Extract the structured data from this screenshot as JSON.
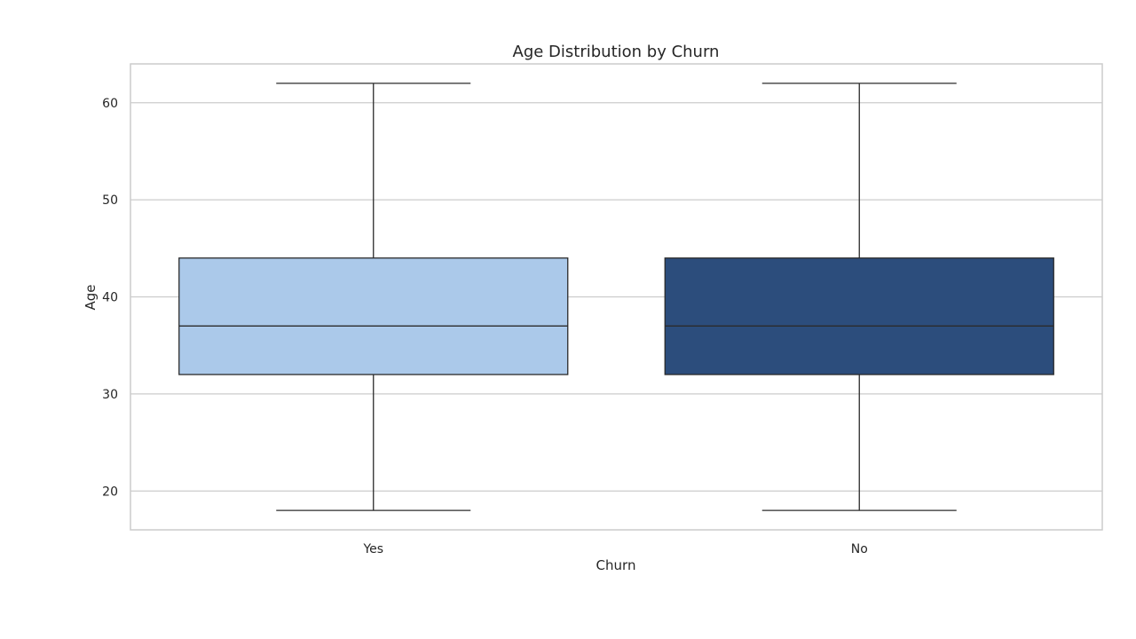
{
  "chart_data": {
    "type": "box",
    "title": "Age Distribution by Churn",
    "xlabel": "Churn",
    "ylabel": "Age",
    "categories": [
      "Yes",
      "No"
    ],
    "series": [
      {
        "category": "Yes",
        "whisker_low": 18,
        "q1": 32,
        "median": 37,
        "q3": 44,
        "whisker_high": 62,
        "color": "#abc9ea"
      },
      {
        "category": "No",
        "whisker_low": 18,
        "q1": 32,
        "median": 37,
        "q3": 44,
        "whisker_high": 62,
        "color": "#2c4d7c"
      }
    ],
    "ylim": [
      16,
      64
    ],
    "yticks": [
      20,
      30,
      40,
      50,
      60
    ],
    "grid": true,
    "colors": {
      "grid": "#cccccc",
      "frame": "#cccccc",
      "box_edge": "#2b2b2b"
    }
  }
}
